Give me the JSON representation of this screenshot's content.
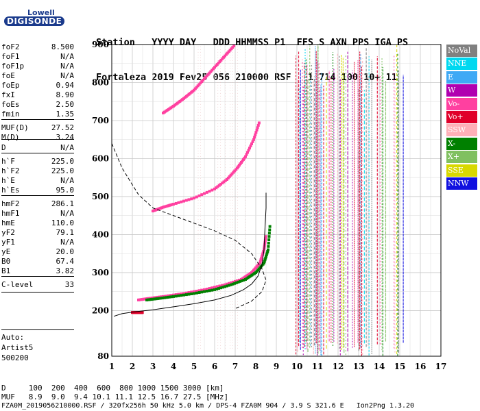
{
  "logo": {
    "brand_top": "Lowell",
    "brand_main": "DIGISONDE"
  },
  "header": {
    "line1": "Station   YYYY DAY   DDD HHMMSS P1  FFS S AXN PPS IGA PS",
    "line2": "Fortaleza 2019 Fev25 056 210000 RSF   1 714 100 10+ 11"
  },
  "params": [
    {
      "k": "foF2",
      "v": "8.500"
    },
    {
      "k": "foF1",
      "v": "N/A"
    },
    {
      "k": "foF1p",
      "v": "N/A"
    },
    {
      "k": "foE",
      "v": "N/A"
    },
    {
      "k": "foEp",
      "v": "0.94"
    },
    {
      "k": "fxI",
      "v": "8.90"
    },
    {
      "k": "foEs",
      "v": "2.50"
    },
    {
      "k": "fmin",
      "v": "1.35"
    },
    {
      "k": "MUF(D)",
      "v": "27.52"
    },
    {
      "k": "M(D)",
      "v": "3.24"
    },
    {
      "k": "D",
      "v": "N/A"
    },
    {
      "k": "h`F",
      "v": "225.0"
    },
    {
      "k": "h`F2",
      "v": "225.0"
    },
    {
      "k": "h`E",
      "v": "N/A"
    },
    {
      "k": "h`Es",
      "v": "95.0"
    },
    {
      "k": "hmF2",
      "v": "286.1"
    },
    {
      "k": "hmF1",
      "v": "N/A"
    },
    {
      "k": "hmE",
      "v": "110.0"
    },
    {
      "k": "yF2",
      "v": "79.1"
    },
    {
      "k": "yF1",
      "v": "N/A"
    },
    {
      "k": "yE",
      "v": "20.0"
    },
    {
      "k": "B0",
      "v": "67.4"
    },
    {
      "k": "B1",
      "v": "3.82"
    },
    {
      "k": "C-level",
      "v": "33"
    }
  ],
  "auto": [
    "Auto:",
    "Artist5",
    "500200"
  ],
  "legend": [
    {
      "label": "NoVal",
      "color": "#808080"
    },
    {
      "label": "NNE",
      "color": "#00d8f0"
    },
    {
      "label": "E",
      "color": "#3fa9f5"
    },
    {
      "label": "W",
      "color": "#b000b0"
    },
    {
      "label": "Vo-",
      "color": "#ff40a0"
    },
    {
      "label": "Vo+",
      "color": "#e0002a"
    },
    {
      "label": "SSW",
      "color": "#ffb0b8"
    },
    {
      "label": "X-",
      "color": "#008000"
    },
    {
      "label": "X+",
      "color": "#80c060"
    },
    {
      "label": "SSE",
      "color": "#d8d800"
    },
    {
      "label": "NNW",
      "color": "#1010e0"
    }
  ],
  "chart_data": {
    "type": "scatter",
    "xlim": [
      1,
      17
    ],
    "ylim": [
      80,
      900
    ],
    "x_ticks": [
      1,
      2,
      3,
      4,
      5,
      6,
      7,
      8,
      9,
      10,
      11,
      12,
      13,
      14,
      15,
      16,
      17
    ],
    "y_ticks": [
      80,
      200,
      300,
      400,
      500,
      600,
      700,
      800,
      900
    ],
    "grid": true,
    "legend_position": "right",
    "traces": [
      {
        "mode": "O",
        "x": [
          2.3,
          2.8,
          3.5,
          4.5,
          5.5,
          6.5,
          7.3,
          7.8,
          8.2,
          8.4,
          8.5
        ],
        "y": [
          228,
          232,
          237,
          245,
          255,
          268,
          282,
          300,
          325,
          360,
          400
        ]
      },
      {
        "mode": "X",
        "x": [
          2.7,
          3.3,
          4.0,
          5.0,
          6.0,
          6.8,
          7.5,
          8.0,
          8.4,
          8.6,
          8.7
        ],
        "y": [
          228,
          232,
          237,
          245,
          255,
          268,
          282,
          300,
          325,
          360,
          430
        ]
      },
      {
        "mode": "O2",
        "x": [
          3.0,
          3.5,
          4.0,
          5.0,
          6.0,
          6.6,
          7.1,
          7.5,
          7.9,
          8.2
        ],
        "y": [
          462,
          472,
          480,
          496,
          520,
          545,
          575,
          605,
          650,
          700
        ]
      },
      {
        "mode": "O3",
        "x": [
          3.5,
          4.0,
          4.5,
          5.0,
          5.5,
          6.0,
          6.5,
          7.0
        ],
        "y": [
          720,
          738,
          758,
          780,
          810,
          840,
          870,
          900
        ]
      },
      {
        "mode": "Es",
        "x": [
          2.0,
          2.2,
          2.4,
          2.5
        ],
        "y": [
          195,
          195,
          195,
          195
        ]
      }
    ],
    "profile_solid": {
      "x": [
        1.1,
        1.5,
        2.0,
        3.0,
        4.0,
        5.0,
        6.0,
        6.8,
        7.4,
        7.8,
        8.1,
        8.3,
        8.4,
        8.45,
        8.5,
        8.5
      ],
      "y": [
        185,
        192,
        196,
        202,
        210,
        218,
        228,
        240,
        255,
        270,
        290,
        320,
        360,
        420,
        470,
        510
      ]
    },
    "profile_dashed": {
      "x": [
        1.0,
        1.5,
        2.3,
        3.0,
        4.0,
        5.0,
        6.0,
        7.0,
        7.8,
        8.3,
        8.5,
        8.3,
        7.8,
        7.0
      ],
      "y": [
        640,
        575,
        505,
        470,
        450,
        430,
        410,
        385,
        350,
        310,
        280,
        250,
        225,
        205
      ]
    }
  },
  "bottom": {
    "line1": "D     100  200  400  600  800 1000 1500 3000 [km]",
    "line2": "MUF   8.9  9.0  9.4 10.1 11.1 12.5 16.7 27.5 [MHz]",
    "line3": "FZA0M_2019056210000.RSF / 320fx256h 50 kHz 5.0 km / DPS-4 FZA0M 904 / 3.9 S 321.6 E   Ion2Png 1.3.20"
  }
}
